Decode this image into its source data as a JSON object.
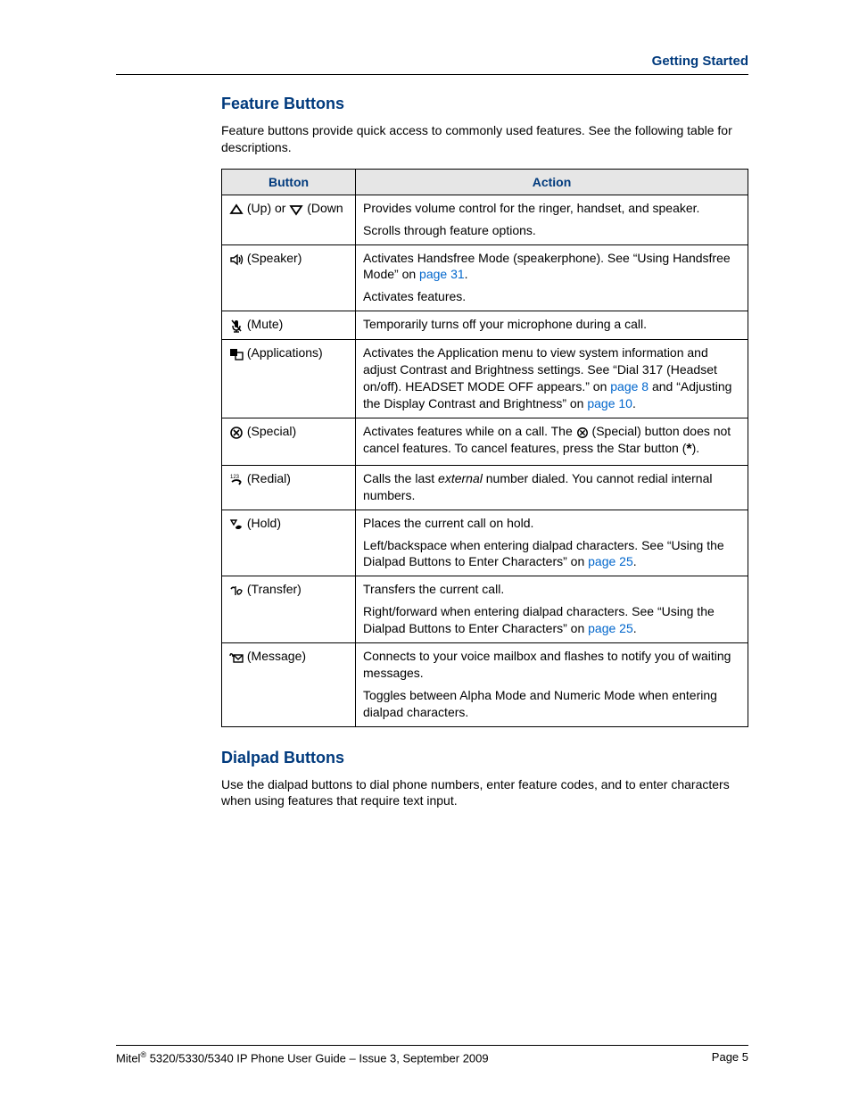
{
  "colors": {
    "heading": "#003a7d",
    "link": "#0066cc",
    "table_header_bg": "#e6e6e6",
    "border": "#000000",
    "text": "#000000",
    "background": "#ffffff"
  },
  "typography": {
    "body_fontsize_pt": 10.5,
    "heading_fontsize_pt": 13,
    "font_family": "Arial"
  },
  "header": {
    "section_title": "Getting Started"
  },
  "section1": {
    "heading": "Feature Buttons",
    "intro": "Feature buttons provide quick access to commonly used features. See the following table for descriptions."
  },
  "table": {
    "columns": [
      "Button",
      "Action"
    ],
    "rows": [
      {
        "button_parts": {
          "pre1": "",
          "icon1": "up",
          "mid": " (Up) or ",
          "icon2": "down",
          "post": " (Down"
        },
        "action": [
          {
            "segments": [
              {
                "t": "Provides volume control for the ringer, handset, and speaker."
              }
            ]
          },
          {
            "segments": [
              {
                "t": "Scrolls through feature options."
              }
            ]
          }
        ]
      },
      {
        "button_parts": {
          "icon1": "speaker",
          "post": " (Speaker)"
        },
        "action": [
          {
            "segments": [
              {
                "t": "Activates Handsfree Mode (speakerphone). See “Using Handsfree Mode” on "
              },
              {
                "link": "page 31"
              },
              {
                "t": "."
              }
            ]
          },
          {
            "segments": [
              {
                "t": "Activates features."
              }
            ]
          }
        ]
      },
      {
        "button_parts": {
          "icon1": "mute",
          "post": " (Mute)"
        },
        "action": [
          {
            "segments": [
              {
                "t": "Temporarily turns off your microphone during a call."
              }
            ]
          }
        ]
      },
      {
        "button_parts": {
          "icon1": "apps",
          "post": " (Applications)"
        },
        "action": [
          {
            "segments": [
              {
                "t": "Activates the Application menu to view system information and adjust Contrast and Brightness settings. See “Dial 317 (Headset on/off). HEADSET MODE OFF appears.” on "
              },
              {
                "link": "page 8"
              },
              {
                "t": " and “Adjusting the Display Contrast and Brightness” on "
              },
              {
                "link": "page 10"
              },
              {
                "t": "."
              }
            ]
          }
        ]
      },
      {
        "button_parts": {
          "icon1": "special",
          "post": " (Special)"
        },
        "action": [
          {
            "segments": [
              {
                "t": "Activates features while on a call. The "
              },
              {
                "inline_icon": "special"
              },
              {
                "t": " (Special) button does not cancel features. To cancel features, press the Star button ("
              },
              {
                "star": "*"
              },
              {
                "t": ")."
              }
            ]
          }
        ]
      },
      {
        "button_parts": {
          "icon1": "redial",
          "post": " (Redial)"
        },
        "action": [
          {
            "segments": [
              {
                "t": "Calls the last "
              },
              {
                "em": "external"
              },
              {
                "t": " number dialed. You cannot redial internal numbers."
              }
            ]
          }
        ]
      },
      {
        "button_parts": {
          "icon1": "hold",
          "post": " (Hold)"
        },
        "action": [
          {
            "segments": [
              {
                "t": "Places the current call on hold."
              }
            ]
          },
          {
            "segments": [
              {
                "t": "Left/backspace when entering dialpad characters. See “Using the Dialpad Buttons to Enter Characters” on "
              },
              {
                "link": "page 25"
              },
              {
                "t": "."
              }
            ]
          }
        ]
      },
      {
        "button_parts": {
          "icon1": "transfer",
          "post": " (Transfer)"
        },
        "action": [
          {
            "segments": [
              {
                "t": "Transfers the current call."
              }
            ]
          },
          {
            "segments": [
              {
                "t": "Right/forward when entering dialpad characters. See “Using the Dialpad Buttons to Enter Characters” on "
              },
              {
                "link": "page 25"
              },
              {
                "t": "."
              }
            ]
          }
        ]
      },
      {
        "button_parts": {
          "icon1": "message",
          "post": " (Message)"
        },
        "action": [
          {
            "segments": [
              {
                "t": "Connects to your voice mailbox and flashes to notify you of waiting messages."
              }
            ]
          },
          {
            "segments": [
              {
                "t": "Toggles between Alpha Mode and Numeric Mode when entering dialpad characters."
              }
            ]
          }
        ]
      }
    ]
  },
  "section2": {
    "heading": "Dialpad Buttons",
    "intro": "Use the dialpad buttons to dial phone numbers, enter feature codes, and to enter characters when using features that require text input."
  },
  "footer": {
    "left_prefix": "Mitel",
    "left_sup": "®",
    "left_rest": " 5320/5330/5340 IP Phone User Guide – Issue 3, September 2009",
    "right": "Page 5"
  },
  "icons": {
    "up": "up-triangle",
    "down": "down-triangle",
    "speaker": "speaker",
    "mute": "mic-mute",
    "apps": "apps-grid",
    "special": "circle-x",
    "redial": "redial-arrow",
    "hold": "hold-handset",
    "transfer": "transfer-phones",
    "message": "envelope-wave"
  }
}
